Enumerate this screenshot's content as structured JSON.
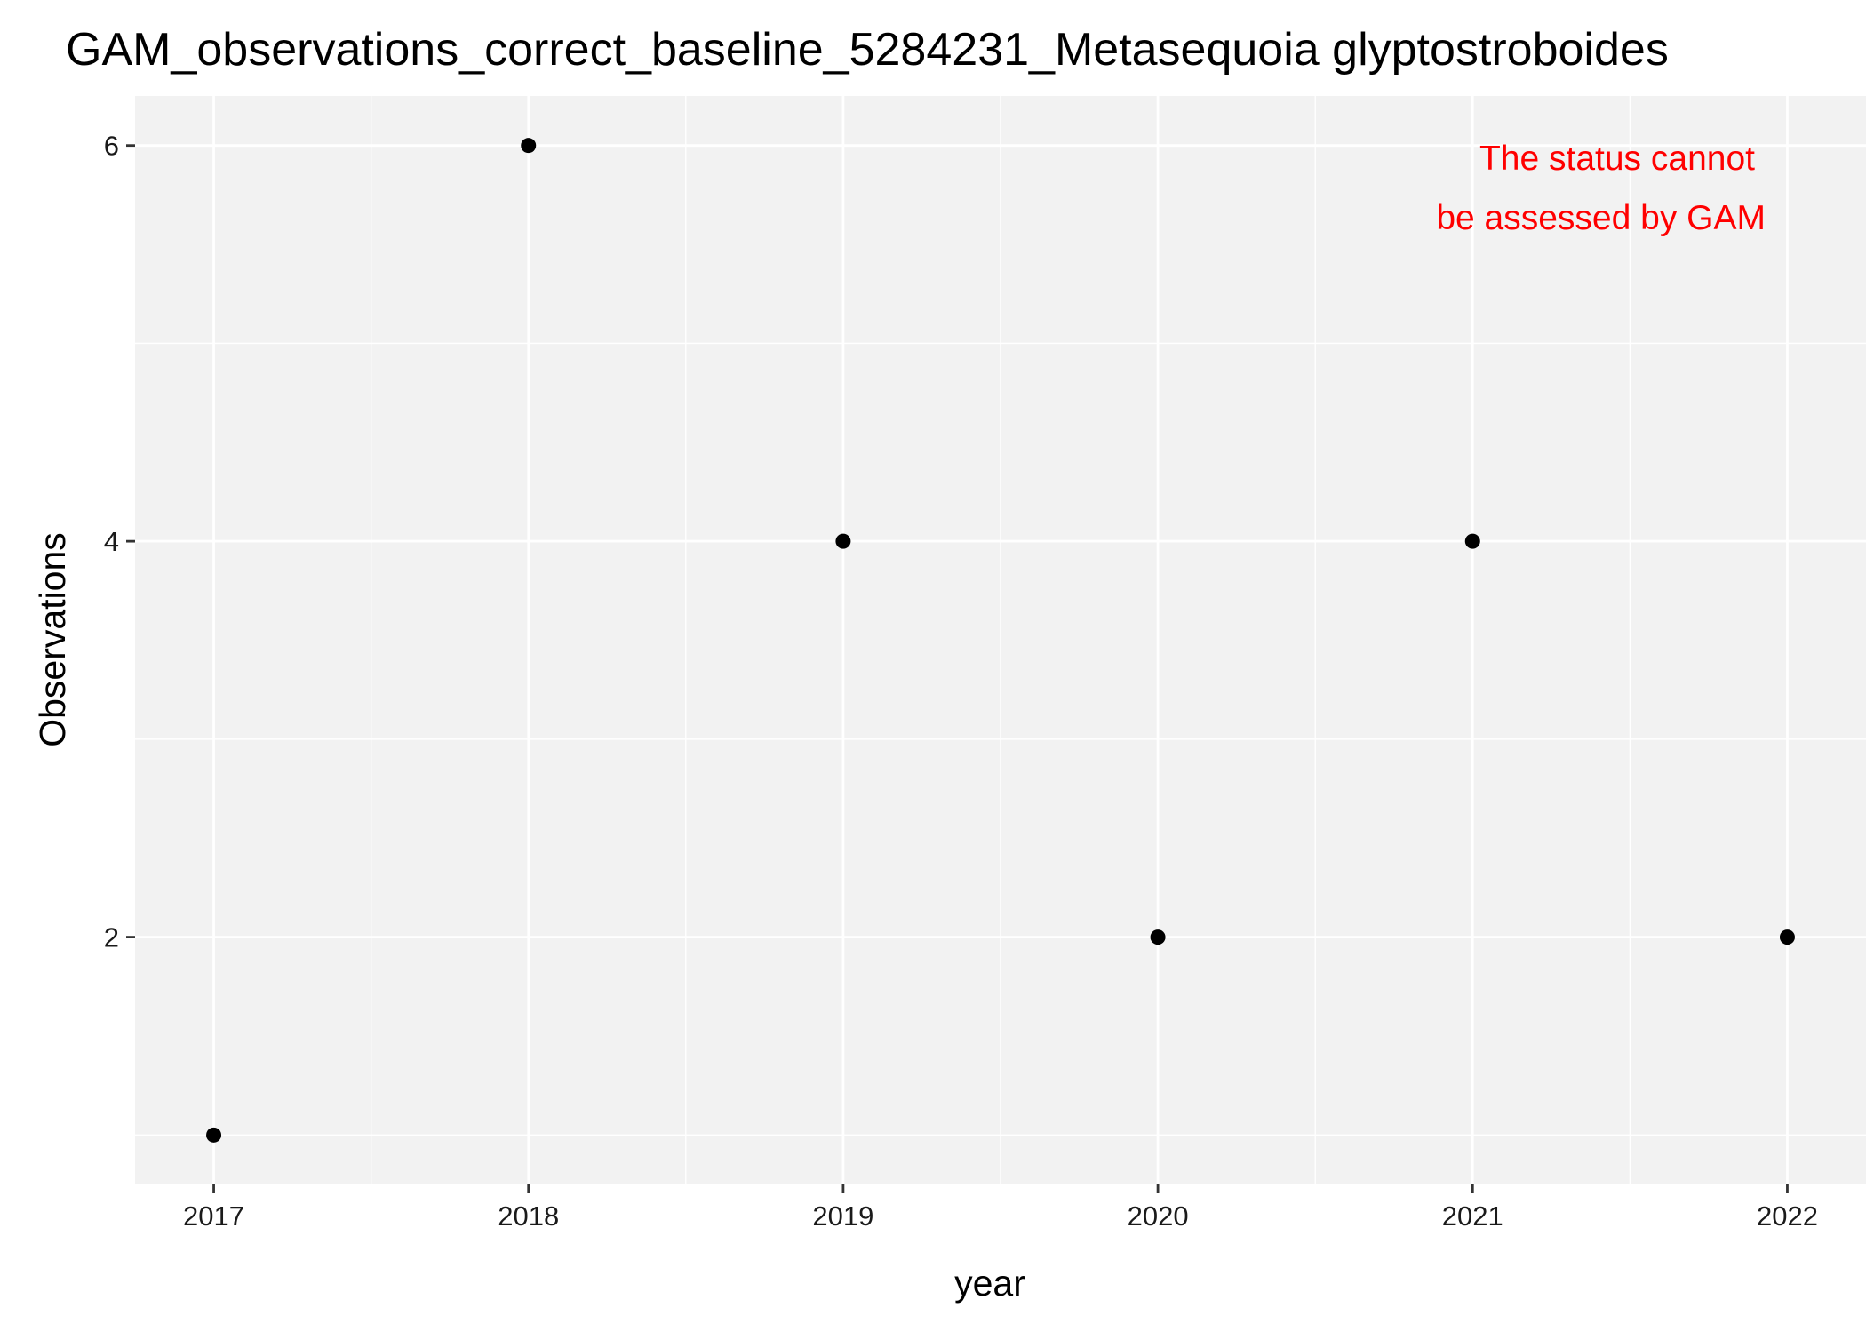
{
  "chart_data": {
    "type": "scatter",
    "title": "GAM_observations_correct_baseline_5284231_Metasequoia glyptostroboides",
    "xlabel": "year",
    "ylabel": "Observations",
    "x": [
      2017,
      2018,
      2019,
      2020,
      2021,
      2022
    ],
    "y": [
      1,
      6,
      4,
      2,
      4,
      2
    ],
    "xticks": [
      2017,
      2018,
      2019,
      2020,
      2021,
      2022
    ],
    "yticks": [
      2,
      4,
      6
    ],
    "xlim": [
      2016.75,
      2022.25
    ],
    "ylim": [
      0.75,
      6.25
    ],
    "grid": true,
    "annotation": {
      "lines": [
        "The status cannot",
        "be assessed by GAM"
      ],
      "color": "#ff0000",
      "placement": "top-right"
    },
    "colors": {
      "panel_background": "#f2f2f2",
      "grid": "#ffffff",
      "point": "#000000"
    }
  }
}
